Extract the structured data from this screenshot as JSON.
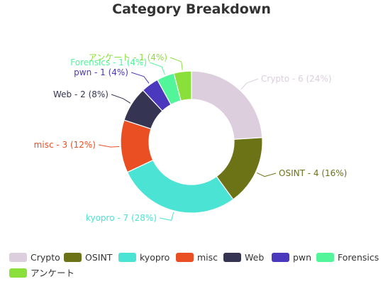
{
  "chart_data": {
    "type": "pie",
    "donut": true,
    "title": "Category Breakdown",
    "legend_position": "bottom",
    "slices": [
      {
        "name": "Crypto",
        "value": 6,
        "percent": 24,
        "color": "#dccedc",
        "label": "Crypto - 6 (24%)"
      },
      {
        "name": "OSINT",
        "value": 4,
        "percent": 16,
        "color": "#6b7316",
        "label": "OSINT - 4 (16%)"
      },
      {
        "name": "kyopro",
        "value": 7,
        "percent": 28,
        "color": "#4be3d3",
        "label": "kyopro - 7 (28%)"
      },
      {
        "name": "misc",
        "value": 3,
        "percent": 12,
        "color": "#ea4f24",
        "label": "misc - 3 (12%)"
      },
      {
        "name": "Web",
        "value": 2,
        "percent": 8,
        "color": "#353452",
        "label": "Web - 2 (8%)"
      },
      {
        "name": "pwn",
        "value": 1,
        "percent": 4,
        "color": "#4a39bc",
        "label": "pwn - 1 (4%)"
      },
      {
        "name": "Forensics",
        "value": 1,
        "percent": 4,
        "color": "#52f59a",
        "label": "Forensics - 1 (4%)"
      },
      {
        "name": "アンケート",
        "value": 1,
        "percent": 4,
        "color": "#8adf3a",
        "label": "アンケート - 1 (4%)"
      }
    ]
  }
}
